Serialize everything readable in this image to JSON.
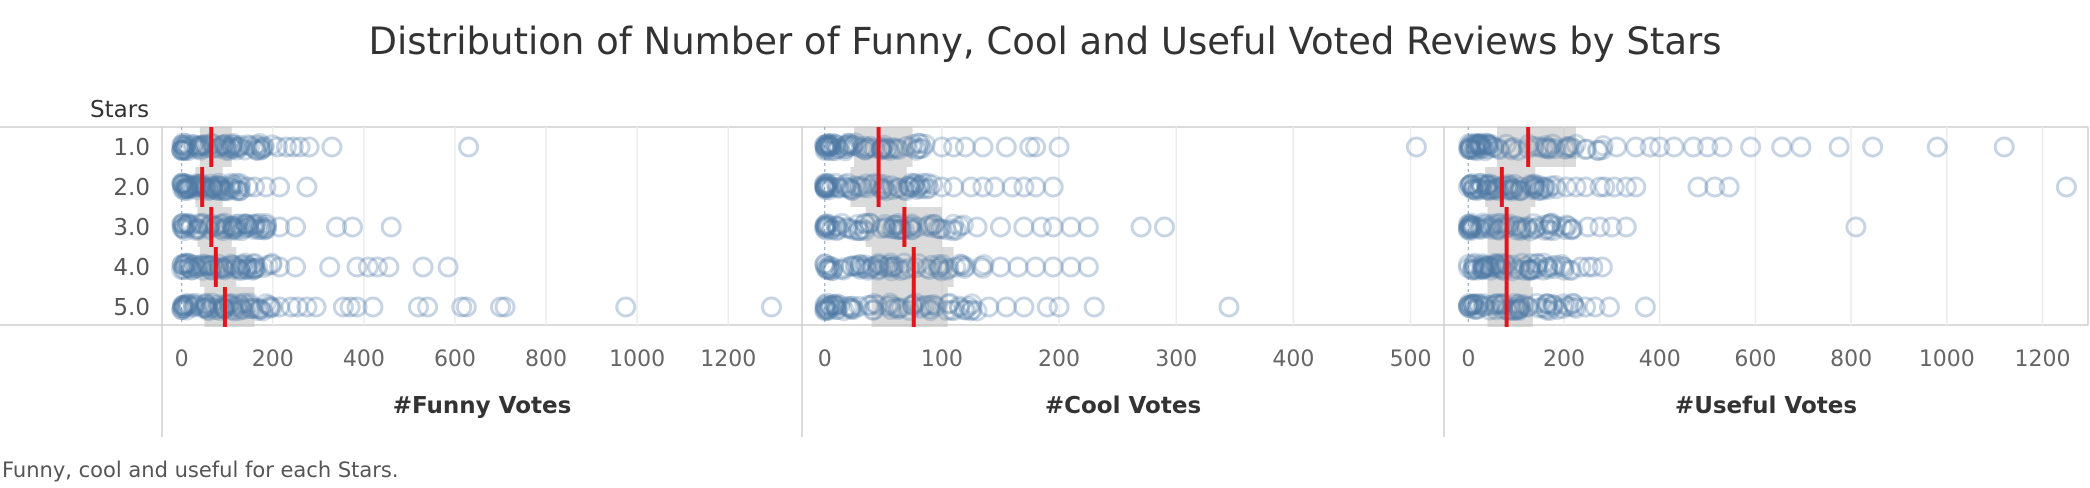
{
  "title": "Distribution of Number of Funny, Cool and Useful Voted Reviews by Stars",
  "caption": "Funny, cool and useful for each Stars.",
  "chart_data": {
    "type": "scatter",
    "subtype": "jittered circle strip plot with box plots and median markers",
    "row_header": "Stars",
    "rows": [
      "1.0",
      "2.0",
      "3.0",
      "4.0",
      "5.0"
    ],
    "colors": {
      "point": "#4e79a7",
      "median": "#e3141b",
      "box": "#bdbdbd"
    },
    "panels": [
      {
        "name": "#Funny Votes",
        "xlabel": "#Funny Votes",
        "xlim": [
          -30,
          1340
        ],
        "ticks": [
          0,
          200,
          400,
          600,
          800,
          1000,
          1200
        ],
        "series": [
          {
            "stars": "1.0",
            "median": 65,
            "q1": 40,
            "q3": 110,
            "dense_max": 200,
            "points": [
              210,
              230,
              245,
              260,
              280,
              330,
              630
            ]
          },
          {
            "stars": "2.0",
            "median": 45,
            "q1": 30,
            "q3": 90,
            "dense_max": 130,
            "points": [
              145,
              160,
              185,
              215,
              275
            ]
          },
          {
            "stars": "3.0",
            "median": 65,
            "q1": 35,
            "q3": 110,
            "dense_max": 200,
            "points": [
              215,
              250,
              340,
              375,
              460
            ]
          },
          {
            "stars": "4.0",
            "median": 75,
            "q1": 40,
            "q3": 120,
            "dense_max": 200,
            "points": [
              215,
              250,
              325,
              385,
              410,
              430,
              455,
              530,
              585
            ]
          },
          {
            "stars": "5.0",
            "median": 95,
            "q1": 50,
            "q3": 160,
            "dense_max": 200,
            "points": [
              215,
              240,
              255,
              275,
              295,
              355,
              370,
              385,
              420,
              520,
              540,
              615,
              625,
              700,
              710,
              975,
              1295
            ]
          }
        ]
      },
      {
        "name": "#Cool Votes",
        "xlabel": "#Cool Votes",
        "xlim": [
          -10,
          520
        ],
        "ticks": [
          0,
          100,
          200,
          300,
          400,
          500
        ],
        "series": [
          {
            "stars": "1.0",
            "median": 46,
            "q1": 25,
            "q3": 75,
            "dense_max": 90,
            "points": [
              100,
              110,
              120,
              135,
              155,
              175,
              180,
              200,
              505
            ]
          },
          {
            "stars": "2.0",
            "median": 46,
            "q1": 22,
            "q3": 70,
            "dense_max": 95,
            "points": [
              100,
              110,
              125,
              135,
              145,
              160,
              170,
              180,
              195
            ]
          },
          {
            "stars": "3.0",
            "median": 68,
            "q1": 35,
            "q3": 100,
            "dense_max": 120,
            "points": [
              130,
              150,
              170,
              185,
              195,
              210,
              225,
              270,
              290
            ]
          },
          {
            "stars": "4.0",
            "median": 76,
            "q1": 40,
            "q3": 110,
            "dense_max": 140,
            "points": [
              150,
              165,
              180,
              195,
              210,
              225
            ]
          },
          {
            "stars": "5.0",
            "median": 76,
            "q1": 40,
            "q3": 105,
            "dense_max": 130,
            "points": [
              140,
              155,
              170,
              190,
              200,
              230,
              345
            ]
          }
        ]
      },
      {
        "name": "#Useful Votes",
        "xlabel": "#Useful Votes",
        "xlim": [
          -30,
          1270
        ],
        "ticks": [
          0,
          200,
          400,
          600,
          800,
          1000,
          1200
        ],
        "series": [
          {
            "stars": "1.0",
            "median": 125,
            "q1": 60,
            "q3": 225,
            "dense_max": 290,
            "points": [
              310,
              350,
              380,
              400,
              430,
              470,
              500,
              530,
              590,
              655,
              695,
              775,
              845,
              980,
              1120
            ]
          },
          {
            "stars": "2.0",
            "median": 70,
            "q1": 35,
            "q3": 140,
            "dense_max": 190,
            "points": [
              205,
              225,
              245,
              275,
              285,
              305,
              330,
              350,
              480,
              515,
              545,
              1250
            ]
          },
          {
            "stars": "3.0",
            "median": 80,
            "q1": 40,
            "q3": 130,
            "dense_max": 220,
            "points": [
              250,
              275,
              300,
              330,
              810
            ]
          },
          {
            "stars": "4.0",
            "median": 80,
            "q1": 40,
            "q3": 130,
            "dense_max": 220,
            "points": [
              235,
              250,
              260,
              280
            ]
          },
          {
            "stars": "5.0",
            "median": 80,
            "q1": 40,
            "q3": 135,
            "dense_max": 230,
            "points": [
              245,
              265,
              295,
              370
            ]
          }
        ]
      }
    ]
  }
}
